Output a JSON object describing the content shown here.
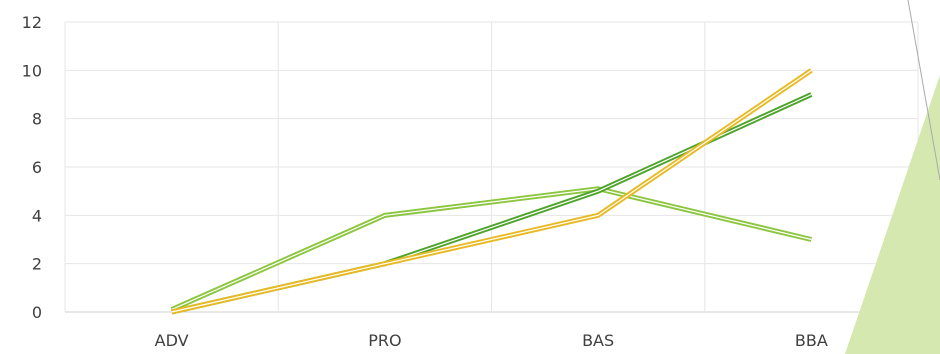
{
  "chart_data": {
    "type": "line",
    "title": "",
    "xlabel": "",
    "ylabel": "",
    "categories": [
      "ADV",
      "PRO",
      "BAS",
      "BBA"
    ],
    "ylim": [
      0,
      12
    ],
    "yticks": [
      0,
      2,
      4,
      6,
      8,
      10,
      12
    ],
    "grid": true,
    "series": [
      {
        "values": [
          0.1,
          4.0,
          5.1,
          3.0
        ],
        "color": "#8cc63f",
        "style": "double"
      },
      {
        "values": [
          0.0,
          2.0,
          5.0,
          9.0
        ],
        "color": "#4ea32a",
        "style": "double"
      },
      {
        "values": [
          0.0,
          2.0,
          4.0,
          10.0
        ],
        "color": "#e8b923",
        "style": "double"
      }
    ]
  },
  "decoration": {
    "accent_shape_color": "#d4e8b0",
    "accent_line_color": "#aaaaaa"
  }
}
